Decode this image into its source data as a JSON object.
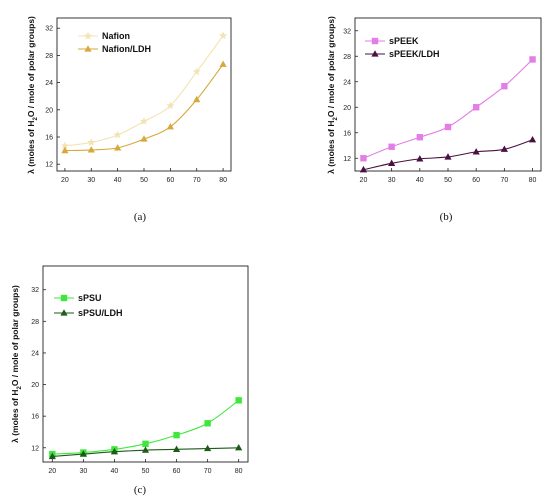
{
  "chart_data": [
    {
      "type": "line",
      "caption": "(a)",
      "ylabel_parts": [
        "λ (moles of H",
        "2",
        "O / mole of polar groups)"
      ],
      "x": [
        20,
        30,
        40,
        50,
        60,
        70,
        80
      ],
      "xticks": [
        20,
        30,
        40,
        50,
        60,
        70,
        80
      ],
      "xlim": [
        17,
        83
      ],
      "yticks": [
        12,
        16,
        20,
        24,
        28,
        32
      ],
      "ylim": [
        11,
        33.5
      ],
      "legend": "top-left",
      "grid": false,
      "series": [
        {
          "name": "Nafion",
          "marker": "star",
          "color": "#f3e3b4",
          "values": [
            14.7,
            15.2,
            16.3,
            18.3,
            20.6,
            25.6,
            30.9
          ]
        },
        {
          "name": "Nafion/LDH",
          "marker": "triangle",
          "color": "#d6a93a",
          "values": [
            14.0,
            14.1,
            14.4,
            15.7,
            17.5,
            21.5,
            26.7
          ]
        }
      ]
    },
    {
      "type": "line",
      "caption": "(b)",
      "ylabel_parts": [
        "λ (moles of H",
        "2",
        "O / mole of polar groups)"
      ],
      "x": [
        20,
        30,
        40,
        50,
        60,
        70,
        80
      ],
      "xticks": [
        20,
        30,
        40,
        50,
        60,
        70,
        80
      ],
      "xlim": [
        17,
        83
      ],
      "yticks": [
        12,
        16,
        20,
        24,
        28,
        32
      ],
      "ylim": [
        10,
        34
      ],
      "legend": "top-left",
      "grid": false,
      "series": [
        {
          "name": "sPEEK",
          "marker": "square",
          "color": "#e27ee6",
          "values": [
            12.0,
            13.8,
            15.3,
            16.9,
            20.0,
            23.3,
            27.5
          ]
        },
        {
          "name": "sPEEK/LDH",
          "marker": "triangle",
          "color": "#4a1140",
          "values": [
            10.2,
            11.2,
            11.9,
            12.2,
            13.0,
            13.4,
            14.9
          ]
        }
      ]
    },
    {
      "type": "line",
      "caption": "(c)",
      "ylabel_parts": [
        "λ (moles of H",
        "2",
        "O / mole of polar groups)"
      ],
      "x": [
        20,
        30,
        40,
        50,
        60,
        70,
        80
      ],
      "xticks": [
        20,
        30,
        40,
        50,
        60,
        70,
        80
      ],
      "xlim": [
        17,
        83
      ],
      "yticks": [
        12,
        16,
        20,
        24,
        28,
        32
      ],
      "ylim": [
        10.2,
        35
      ],
      "legend": "top-left",
      "grid": false,
      "series": [
        {
          "name": "sPSU",
          "marker": "square",
          "color": "#3ee83a",
          "values": [
            11.2,
            11.4,
            11.8,
            12.5,
            13.6,
            15.1,
            18.0
          ]
        },
        {
          "name": "sPSU/LDH",
          "marker": "triangle",
          "color": "#1e5a18",
          "values": [
            10.9,
            11.2,
            11.5,
            11.7,
            11.8,
            11.9,
            12.0
          ]
        }
      ]
    }
  ]
}
